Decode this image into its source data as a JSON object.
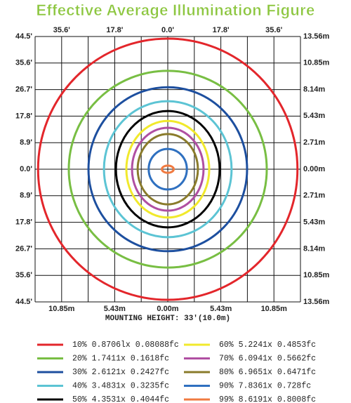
{
  "chart_data": {
    "type": "isolines",
    "title": "Effective Average Illumination Figure",
    "xlabel": "MOUNTING HEIGHT: 33'(10.0m)",
    "xlim": [
      -44.5,
      44.5
    ],
    "ylim": [
      -44.5,
      44.5
    ],
    "xticks": [
      {
        "value": -35.6,
        "label": "35.6'"
      },
      {
        "value": -17.8,
        "label": "17.8'"
      },
      {
        "value": 0,
        "label": "0.0'"
      },
      {
        "value": 17.8,
        "label": "17.8'"
      },
      {
        "value": 35.6,
        "label": "35.6'"
      }
    ],
    "xgrid": [
      -44.5,
      -35.6,
      -26.7,
      -17.8,
      -8.9,
      0,
      8.9,
      17.8,
      26.7,
      35.6,
      44.5
    ],
    "yticks": [
      {
        "value": 44.5,
        "label": "44.5'"
      },
      {
        "value": 35.6,
        "label": "35.6'"
      },
      {
        "value": 26.7,
        "label": "26.7'"
      },
      {
        "value": 17.8,
        "label": "17.8'"
      },
      {
        "value": 8.9,
        "label": "8.9'"
      },
      {
        "value": 0,
        "label": "0.0'"
      },
      {
        "value": -8.9,
        "label": "8.9'"
      },
      {
        "value": -17.8,
        "label": "17.8'"
      },
      {
        "value": -26.7,
        "label": "26.7'"
      },
      {
        "value": -35.6,
        "label": "35.6'"
      },
      {
        "value": -44.5,
        "label": "44.5'"
      }
    ],
    "x2lim": [
      -13.56,
      13.56
    ],
    "x2ticks": [
      {
        "value": -10.85,
        "label": "10.85m"
      },
      {
        "value": -5.43,
        "label": "5.43m"
      },
      {
        "value": 0,
        "label": "0.00m"
      },
      {
        "value": 5.43,
        "label": "5.43m"
      },
      {
        "value": 10.85,
        "label": "10.85m"
      }
    ],
    "y2lim": [
      -13.56,
      13.56
    ],
    "y2ticks": [
      {
        "value": 13.56,
        "label": "13.56m"
      },
      {
        "value": 10.85,
        "label": "10.85m"
      },
      {
        "value": 8.14,
        "label": "8.14m"
      },
      {
        "value": 5.43,
        "label": "5.43m"
      },
      {
        "value": 2.71,
        "label": "2.71m"
      },
      {
        "value": 0,
        "label": "0.00m"
      },
      {
        "value": -2.71,
        "label": "2.71m"
      },
      {
        "value": -5.43,
        "label": "5.43m"
      },
      {
        "value": -8.14,
        "label": "8.14m"
      },
      {
        "value": -10.85,
        "label": "10.85m"
      },
      {
        "value": -13.56,
        "label": "13.56m"
      }
    ],
    "grid": true,
    "series": [
      {
        "name": "10% 0.8706lx 0.08088fc",
        "color": "#e3262b",
        "rx": 43.5,
        "ry": 43.8
      },
      {
        "name": "20% 1.7411x 0.1618fc",
        "color": "#78be43",
        "rx": 33.2,
        "ry": 33
      },
      {
        "name": "30% 2.6121x 0.2427fc",
        "color": "#1d4f9f",
        "rx": 26.6,
        "ry": 27.5
      },
      {
        "name": "40% 3.4831x 0.3235fc",
        "color": "#5cc4d4",
        "rx": 21.4,
        "ry": 22.8
      },
      {
        "name": "50% 4.3531x 0.4044fc",
        "color": "#000000",
        "rx": 17.4,
        "ry": 19.5
      },
      {
        "name": "60% 5.2241x 0.4853fc",
        "color": "#f1e92c",
        "rx": 13.9,
        "ry": 16.2
      },
      {
        "name": "70% 6.0941x 0.5662fc",
        "color": "#b04fa2",
        "rx": 12,
        "ry": 13.9
      },
      {
        "name": "80% 6.9651x 0.6471fc",
        "color": "#8a7b2b",
        "rx": 10.1,
        "ry": 11.8
      },
      {
        "name": "90% 7.8361x 0.728fc",
        "color": "#2f70c0",
        "rx": 6.4,
        "ry": 6.8
      },
      {
        "name": "99% 8.6191x 0.8008fc",
        "color": "#f07a40",
        "rx": 2,
        "ry": 1.2
      }
    ]
  }
}
